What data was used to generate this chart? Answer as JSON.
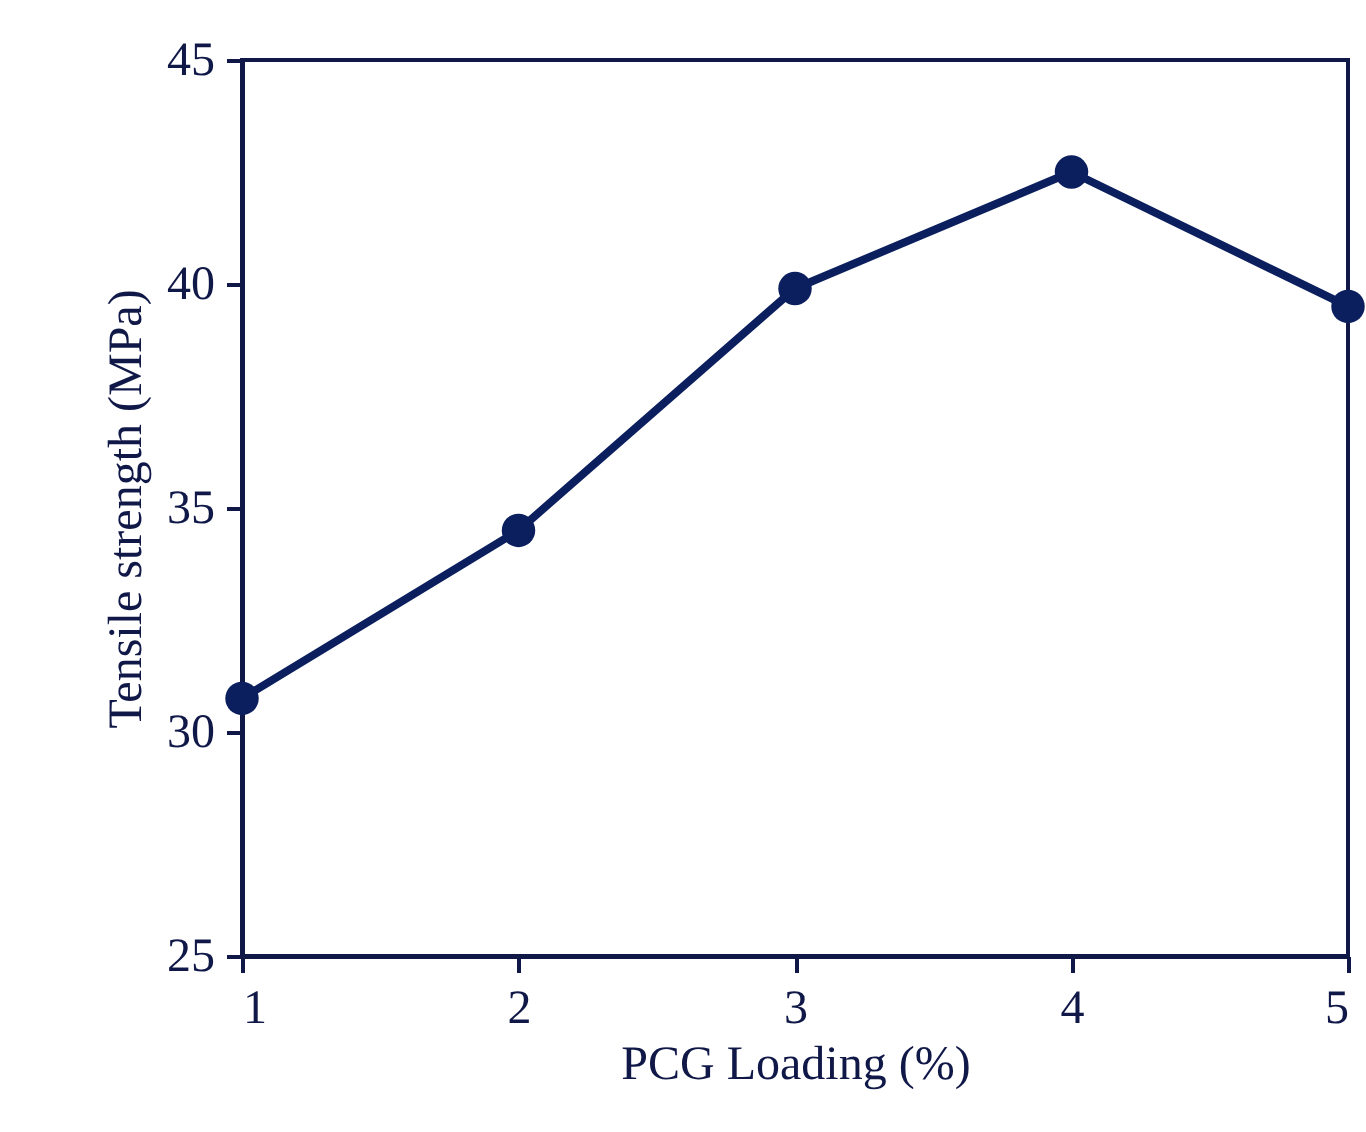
{
  "chart_data": {
    "type": "line",
    "xlabel": "PCG Loading (%)",
    "ylabel": "Tensile strength (MPa)",
    "x": [
      1,
      2,
      3,
      4,
      5
    ],
    "series": [
      {
        "color": "#0b1f5e",
        "values": [
          30.75,
          34.5,
          39.9,
          42.5,
          39.5
        ]
      }
    ],
    "xlim": [
      1,
      5
    ],
    "xticks": [
      1,
      2,
      3,
      4,
      5
    ],
    "ylim": [
      25,
      45
    ],
    "yticks": [
      25,
      30,
      35,
      40,
      45
    ],
    "grid": false,
    "marker": "circle",
    "line_style": "solid"
  }
}
